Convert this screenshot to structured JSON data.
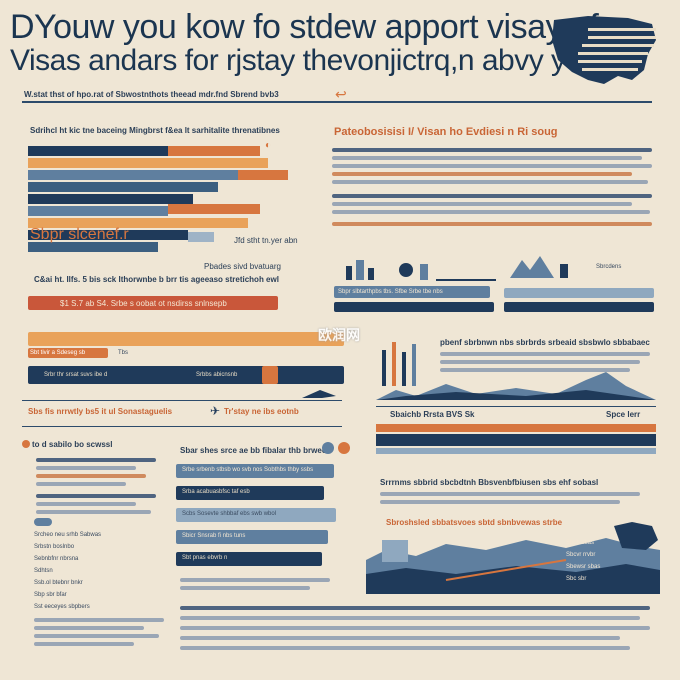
{
  "header": {
    "title_line1": "DYouw you kow fo stdew apport visay of",
    "title_line2": "Visas andars for rjstay thevonjictrq,n abvy yeni?",
    "subline": "W.stat thst of hpo.rat of Sbwostnthots theead mdr.fnd  Sbrend bvb3"
  },
  "left_top": {
    "heading": "Sdrihcl ht kic tne baceing Mingbrst f&ea lt sarhitalite threnatibnes",
    "caption_a": "Sbpr slcenef.r",
    "caption_b": "Jfd  stht tn.yer abn",
    "caption_c": "Pbades sivd bvatuarg"
  },
  "left_mid": {
    "strip_label": "C&ai ht. Ilfs. 5 bis  sck Ithorwnbe b brr tis ageeaso stretichoh ewl",
    "bar_label": "$1 S.7  ab  S4.  Srbe s oobat ot nsdirss snlnsepb",
    "orange_label": "Sbt tivir a Sdeseg sb",
    "orange_side": "Tbs",
    "blue_label": "Srbr  thr srsat   suvs  ibe d",
    "blue_label2": "Srbbs abicnsnb"
  },
  "left_lower": {
    "heading": "Sbs fis nrrwtly bs5 it ul Sonastaguelis",
    "heading2": "Tr'stay ne ibs eotnb",
    "sub_heading": "to  d sabilo bo scwssl",
    "side_lines": [
      "Srcheo neu srhb Sabwas",
      "Srbstn boslnbo",
      "Sebnbfnr nbrsna",
      "Sdhtsn",
      "Ssb.ol btebnr bnkr",
      "Sbp sbr bfar",
      "Sst  eeceyes sbpbers"
    ]
  },
  "mid_lower": {
    "heading": "Sbar shes srce ae bb fibalar thb brwecn",
    "rows": [
      "Srbe srbenb stbsb wo svb nos Sobthbs thby ssbs",
      "Srba acabuasbfsc taf esb",
      "Scbs Sosevte shbbaf ebs swb wbol",
      "Sbicr  Snsrab fi nbs tuns",
      "Sbt pnas ebvrb n"
    ]
  },
  "right_top": {
    "heading": "Pateobosisisi I/ Visan ho Evdiesi n Ri soug",
    "para_lines": 5
  },
  "right_mid": {
    "label1": "Sbpr slbtarthpbs tbs. Sfbe Srbe tbe nbs",
    "label2": "Sbrcdens",
    "heading": "pbenf sbrbnwn nbs sbrbrds srbeaid sbsbwlo sbbabaec",
    "band_label": "Sbaichb Rrsta BVS Sk",
    "band_side": "Spce lerr"
  },
  "right_lower": {
    "heading": "Srrrnms sbbrid sbcbdtnh Bbsvenbfbiusen sbs ehf sobasl",
    "heading2": "Sbroshsled sbbatsvoes sbtd sbnbvewas strbe",
    "legend": [
      "Sbcb sbas",
      "Sbcvr rrvbr",
      "Sbewsr sbas",
      "Sbc sbr"
    ]
  },
  "watermark": "欧润网",
  "colors": {
    "navy": "#1f3a5a",
    "steel": "#5f7f9f",
    "orange": "#d7763f",
    "sand": "#e9a25a",
    "paper": "#efe6d5"
  },
  "icons": [
    "us-map-icon",
    "arrow-icon",
    "plane-icon",
    "skyline-icon"
  ]
}
